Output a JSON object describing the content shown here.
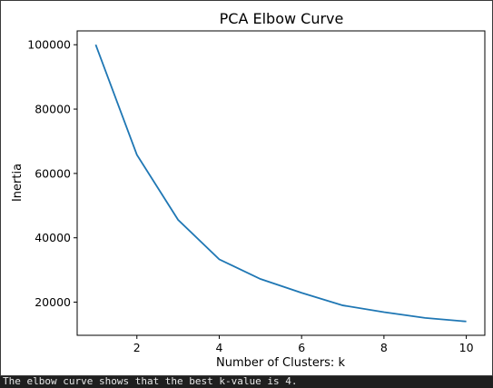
{
  "chart_data": {
    "type": "line",
    "title": "PCA Elbow Curve",
    "xlabel": "Number of Clusters: k",
    "ylabel": "Inertia",
    "x": [
      1,
      2,
      3,
      4,
      5,
      6,
      7,
      8,
      9,
      10
    ],
    "series": [
      {
        "values": [
          100000,
          65800,
          45600,
          33300,
          27200,
          22900,
          19000,
          16900,
          15100,
          14000
        ]
      }
    ],
    "xlim": [
      0.55,
      10.45
    ],
    "ylim": [
      9700,
      104300
    ],
    "xticks": [
      2,
      4,
      6,
      8,
      10
    ],
    "yticks": [
      20000,
      40000,
      60000,
      80000,
      100000
    ],
    "grid": false,
    "line_color": "#1f77b4"
  },
  "output": {
    "text": "The elbow curve shows that the best k-value is 4."
  }
}
